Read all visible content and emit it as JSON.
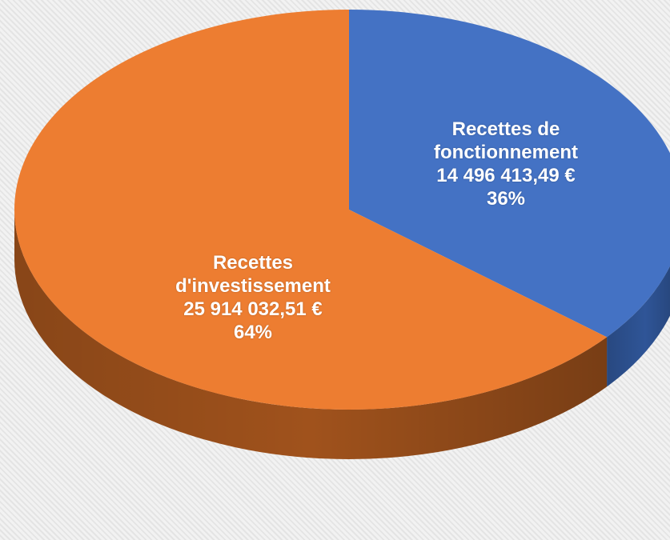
{
  "chart_data": {
    "type": "pie",
    "categories": [
      "Recettes de fonctionnement",
      "Recettes d'investissement"
    ],
    "amounts": [
      "14 496 413,49 €",
      "25 914 032,51 €"
    ],
    "values": [
      36,
      64
    ],
    "value_labels": [
      "36%",
      "64%"
    ],
    "colors": [
      "#4472c4",
      "#ed7d31"
    ],
    "side_colors": [
      "#2f5597",
      "#a0521c"
    ]
  }
}
